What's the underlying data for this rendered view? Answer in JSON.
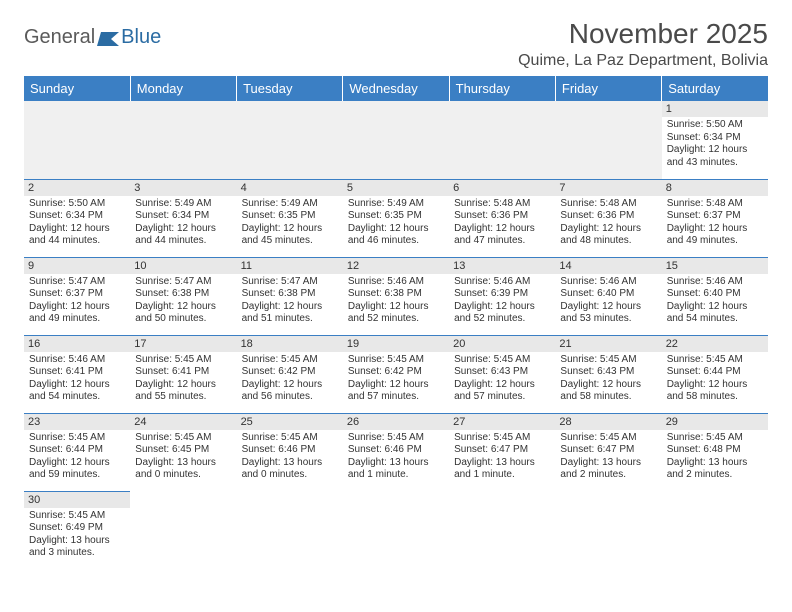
{
  "brand": {
    "part1": "General",
    "part2": "Blue"
  },
  "title": "November 2025",
  "location": "Quime, La Paz Department, Bolivia",
  "colors": {
    "header_bg": "#3b7fc4",
    "header_text": "#ffffff",
    "daynum_bg": "#e8e8e8",
    "border": "#3b7fc4",
    "text": "#333333",
    "brand_gray": "#5a5a5a",
    "brand_blue": "#2b6ca3"
  },
  "day_headers": [
    "Sunday",
    "Monday",
    "Tuesday",
    "Wednesday",
    "Thursday",
    "Friday",
    "Saturday"
  ],
  "weeks": [
    [
      {
        "empty": true
      },
      {
        "empty": true
      },
      {
        "empty": true
      },
      {
        "empty": true
      },
      {
        "empty": true
      },
      {
        "empty": true
      },
      {
        "n": "1",
        "sunrise": "5:50 AM",
        "sunset": "6:34 PM",
        "daylight": "12 hours and 43 minutes."
      }
    ],
    [
      {
        "n": "2",
        "sunrise": "5:50 AM",
        "sunset": "6:34 PM",
        "daylight": "12 hours and 44 minutes."
      },
      {
        "n": "3",
        "sunrise": "5:49 AM",
        "sunset": "6:34 PM",
        "daylight": "12 hours and 44 minutes."
      },
      {
        "n": "4",
        "sunrise": "5:49 AM",
        "sunset": "6:35 PM",
        "daylight": "12 hours and 45 minutes."
      },
      {
        "n": "5",
        "sunrise": "5:49 AM",
        "sunset": "6:35 PM",
        "daylight": "12 hours and 46 minutes."
      },
      {
        "n": "6",
        "sunrise": "5:48 AM",
        "sunset": "6:36 PM",
        "daylight": "12 hours and 47 minutes."
      },
      {
        "n": "7",
        "sunrise": "5:48 AM",
        "sunset": "6:36 PM",
        "daylight": "12 hours and 48 minutes."
      },
      {
        "n": "8",
        "sunrise": "5:48 AM",
        "sunset": "6:37 PM",
        "daylight": "12 hours and 49 minutes."
      }
    ],
    [
      {
        "n": "9",
        "sunrise": "5:47 AM",
        "sunset": "6:37 PM",
        "daylight": "12 hours and 49 minutes."
      },
      {
        "n": "10",
        "sunrise": "5:47 AM",
        "sunset": "6:38 PM",
        "daylight": "12 hours and 50 minutes."
      },
      {
        "n": "11",
        "sunrise": "5:47 AM",
        "sunset": "6:38 PM",
        "daylight": "12 hours and 51 minutes."
      },
      {
        "n": "12",
        "sunrise": "5:46 AM",
        "sunset": "6:38 PM",
        "daylight": "12 hours and 52 minutes."
      },
      {
        "n": "13",
        "sunrise": "5:46 AM",
        "sunset": "6:39 PM",
        "daylight": "12 hours and 52 minutes."
      },
      {
        "n": "14",
        "sunrise": "5:46 AM",
        "sunset": "6:40 PM",
        "daylight": "12 hours and 53 minutes."
      },
      {
        "n": "15",
        "sunrise": "5:46 AM",
        "sunset": "6:40 PM",
        "daylight": "12 hours and 54 minutes."
      }
    ],
    [
      {
        "n": "16",
        "sunrise": "5:46 AM",
        "sunset": "6:41 PM",
        "daylight": "12 hours and 54 minutes."
      },
      {
        "n": "17",
        "sunrise": "5:45 AM",
        "sunset": "6:41 PM",
        "daylight": "12 hours and 55 minutes."
      },
      {
        "n": "18",
        "sunrise": "5:45 AM",
        "sunset": "6:42 PM",
        "daylight": "12 hours and 56 minutes."
      },
      {
        "n": "19",
        "sunrise": "5:45 AM",
        "sunset": "6:42 PM",
        "daylight": "12 hours and 57 minutes."
      },
      {
        "n": "20",
        "sunrise": "5:45 AM",
        "sunset": "6:43 PM",
        "daylight": "12 hours and 57 minutes."
      },
      {
        "n": "21",
        "sunrise": "5:45 AM",
        "sunset": "6:43 PM",
        "daylight": "12 hours and 58 minutes."
      },
      {
        "n": "22",
        "sunrise": "5:45 AM",
        "sunset": "6:44 PM",
        "daylight": "12 hours and 58 minutes."
      }
    ],
    [
      {
        "n": "23",
        "sunrise": "5:45 AM",
        "sunset": "6:44 PM",
        "daylight": "12 hours and 59 minutes."
      },
      {
        "n": "24",
        "sunrise": "5:45 AM",
        "sunset": "6:45 PM",
        "daylight": "13 hours and 0 minutes."
      },
      {
        "n": "25",
        "sunrise": "5:45 AM",
        "sunset": "6:46 PM",
        "daylight": "13 hours and 0 minutes."
      },
      {
        "n": "26",
        "sunrise": "5:45 AM",
        "sunset": "6:46 PM",
        "daylight": "13 hours and 1 minute."
      },
      {
        "n": "27",
        "sunrise": "5:45 AM",
        "sunset": "6:47 PM",
        "daylight": "13 hours and 1 minute."
      },
      {
        "n": "28",
        "sunrise": "5:45 AM",
        "sunset": "6:47 PM",
        "daylight": "13 hours and 2 minutes."
      },
      {
        "n": "29",
        "sunrise": "5:45 AM",
        "sunset": "6:48 PM",
        "daylight": "13 hours and 2 minutes."
      }
    ],
    [
      {
        "n": "30",
        "sunrise": "5:45 AM",
        "sunset": "6:49 PM",
        "daylight": "13 hours and 3 minutes."
      },
      {
        "blank": true
      },
      {
        "blank": true
      },
      {
        "blank": true
      },
      {
        "blank": true
      },
      {
        "blank": true
      },
      {
        "blank": true
      }
    ]
  ],
  "labels": {
    "sunrise": "Sunrise:",
    "sunset": "Sunset:",
    "daylight": "Daylight:"
  }
}
